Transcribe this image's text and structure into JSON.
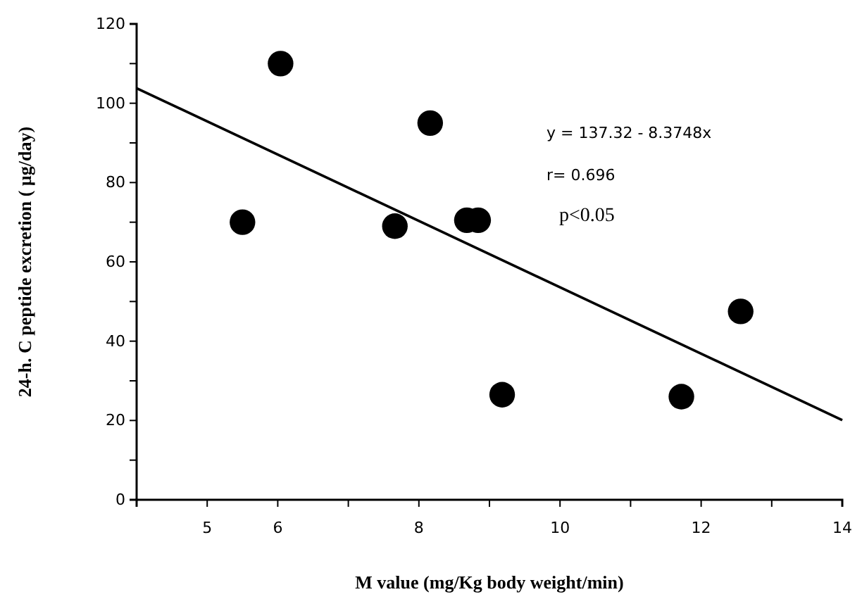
{
  "chart_data": {
    "type": "scatter",
    "xlabel": "M value (mg/Kg body weight/min)",
    "ylabel": "24-h. C peptide excretion ( µg/day)",
    "xlim": [
      4,
      14
    ],
    "xticks": [
      5,
      6,
      {
        "value": 7,
        "label": null
      },
      8,
      {
        "value": 9,
        "label": null
      },
      10,
      {
        "value": 11,
        "label": null
      },
      12,
      {
        "value": 13,
        "label": null
      },
      14
    ],
    "ylim": [
      0,
      120
    ],
    "yticks": [
      0,
      {
        "value": 10,
        "label": null
      },
      20,
      {
        "value": 30,
        "label": null
      },
      40,
      {
        "value": 50,
        "label": null
      },
      60,
      {
        "value": 70,
        "label": null
      },
      80,
      {
        "value": 90,
        "label": null
      },
      100,
      {
        "value": 110,
        "label": null
      },
      120
    ],
    "grid": false,
    "marker": "circle",
    "series": [
      {
        "color": "#000000",
        "x": [
          5.5,
          6.04,
          7.66,
          8.16,
          8.68,
          8.84,
          9.18,
          11.72,
          12.56
        ],
        "values": [
          70,
          110,
          69,
          95,
          70.5,
          70.5,
          26.5,
          26,
          47.5
        ]
      },
      {
        "type": "line",
        "color": "#000000",
        "marker": "none",
        "x": [
          4,
          14
        ],
        "values": [
          103.8,
          20.1
        ]
      }
    ],
    "annotations": [
      "y = 137.32 - 8.3748x",
      "r= 0.696",
      "p<0.05"
    ]
  }
}
